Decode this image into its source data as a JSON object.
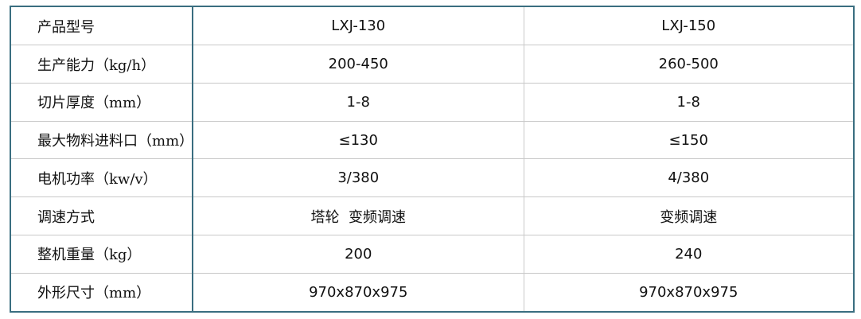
{
  "table": {
    "rows": [
      [
        "产品型号",
        "LXJ-130",
        "LXJ-150"
      ],
      [
        "生产能力（kg/h）",
        "200-450",
        "260-500"
      ],
      [
        "切片厚度（mm）",
        "1-8",
        "1-8"
      ],
      [
        "最大物料进料口（mm）",
        "≤130",
        "≤150"
      ],
      [
        "电机功率（kw/v）",
        "3/380",
        "4/380"
      ],
      [
        "调速方式",
        "塔轮  变频调速",
        "变频调速"
      ],
      [
        "整机重量（kg）",
        "200",
        "240"
      ],
      [
        "外形尺寸（mm）",
        "970x870x975",
        "970x870x975"
      ]
    ]
  }
}
